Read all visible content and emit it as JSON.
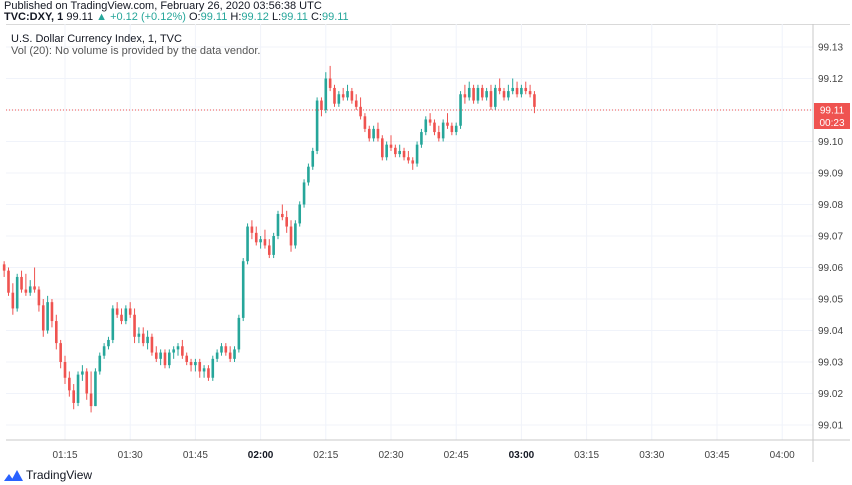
{
  "header": {
    "published": "Published on TradingView.com, February 26, 2020 03:56:38 UTC",
    "symbol": "TVC:DXY, 1",
    "last": "99.11",
    "change": "▲ +0.12 (+0.12%)",
    "o_label": "O:",
    "o_value": "99.11",
    "h_label": "H:",
    "h_value": "99.12",
    "l_label": "L:",
    "l_value": "99.11",
    "c_label": "C:",
    "c_value": "99.11"
  },
  "legend": {
    "title": "U.S. Dollar Currency Index, 1, TVC",
    "volume_note": "Vol (20): No volume is provided by the data vendor."
  },
  "footer": {
    "brand": "TradingView"
  },
  "colors": {
    "up": "#26a69a",
    "down": "#ef5350",
    "grid": "#f0f3fa",
    "current": "#ef5350"
  },
  "icons": {
    "brand_logo": "tradingview-logo-icon"
  },
  "chart_data": {
    "type": "candlestick",
    "title": "U.S. Dollar Currency Index, 1, TVC",
    "ylim": [
      99.0,
      99.135
    ],
    "y_ticks": [
      "99.13",
      "99.12",
      "99.11",
      "99.10",
      "99.09",
      "99.08",
      "99.07",
      "99.06",
      "99.05",
      "99.04",
      "99.03",
      "99.02",
      "99.01"
    ],
    "x_ticks": [
      {
        "t": 75,
        "label": "01:15",
        "bold": false
      },
      {
        "t": 90,
        "label": "01:30",
        "bold": false
      },
      {
        "t": 105,
        "label": "01:45",
        "bold": false
      },
      {
        "t": 120,
        "label": "02:00",
        "bold": true
      },
      {
        "t": 135,
        "label": "02:15",
        "bold": false
      },
      {
        "t": 150,
        "label": "02:30",
        "bold": false
      },
      {
        "t": 165,
        "label": "02:45",
        "bold": false
      },
      {
        "t": 180,
        "label": "03:00",
        "bold": true
      },
      {
        "t": 195,
        "label": "03:15",
        "bold": false
      },
      {
        "t": 210,
        "label": "03:30",
        "bold": false
      },
      {
        "t": 225,
        "label": "03:45",
        "bold": false
      },
      {
        "t": 240,
        "label": "04:00",
        "bold": false
      }
    ],
    "x_start_minute": 61,
    "current_price": "99.11",
    "countdown": "00:23",
    "candles": [
      [
        99.061,
        99.062,
        99.057,
        99.059
      ],
      [
        99.059,
        99.06,
        99.051,
        99.052
      ],
      [
        99.052,
        99.055,
        99.045,
        99.047
      ],
      [
        99.047,
        99.058,
        99.046,
        99.057
      ],
      [
        99.057,
        99.059,
        99.052,
        99.053
      ],
      [
        99.053,
        99.058,
        99.051,
        99.052
      ],
      [
        99.052,
        99.056,
        99.051,
        99.054
      ],
      [
        99.054,
        99.06,
        99.052,
        99.053
      ],
      [
        99.053,
        99.054,
        99.046,
        99.048
      ],
      [
        99.048,
        99.05,
        99.038,
        99.04
      ],
      [
        99.04,
        99.051,
        99.039,
        99.049
      ],
      [
        99.049,
        99.05,
        99.041,
        99.043
      ],
      [
        99.043,
        99.045,
        99.034,
        99.036
      ],
      [
        99.036,
        99.037,
        99.028,
        99.03
      ],
      [
        99.03,
        99.032,
        99.023,
        99.025
      ],
      [
        99.025,
        99.027,
        99.019,
        99.021
      ],
      [
        99.021,
        99.023,
        99.015,
        99.017
      ],
      [
        99.017,
        99.027,
        99.016,
        99.026
      ],
      [
        99.026,
        99.029,
        99.024,
        99.027
      ],
      [
        99.027,
        99.028,
        99.018,
        99.02
      ],
      [
        99.02,
        99.027,
        99.014,
        99.016
      ],
      [
        99.016,
        99.028,
        99.016,
        99.027
      ],
      [
        99.027,
        99.033,
        99.026,
        99.032
      ],
      [
        99.032,
        99.036,
        99.031,
        99.035
      ],
      [
        99.035,
        99.038,
        99.034,
        99.037
      ],
      [
        99.037,
        99.048,
        99.036,
        99.047
      ],
      [
        99.047,
        99.049,
        99.044,
        99.045
      ],
      [
        99.045,
        99.047,
        99.042,
        99.043
      ],
      [
        99.043,
        99.048,
        99.042,
        99.047
      ],
      [
        99.047,
        99.049,
        99.044,
        99.045
      ],
      [
        99.045,
        99.047,
        99.036,
        99.038
      ],
      [
        99.038,
        99.041,
        99.036,
        99.039
      ],
      [
        99.039,
        99.041,
        99.035,
        99.036
      ],
      [
        99.036,
        99.04,
        99.034,
        99.038
      ],
      [
        99.038,
        99.039,
        99.032,
        99.033
      ],
      [
        99.033,
        99.035,
        99.03,
        99.031
      ],
      [
        99.031,
        99.034,
        99.029,
        99.033
      ],
      [
        99.033,
        99.034,
        99.028,
        99.029
      ],
      [
        99.029,
        99.034,
        99.028,
        99.033
      ],
      [
        99.033,
        99.035,
        99.031,
        99.034
      ],
      [
        99.034,
        99.036,
        99.032,
        99.035
      ],
      [
        99.035,
        99.037,
        99.031,
        99.032
      ],
      [
        99.032,
        99.033,
        99.029,
        99.03
      ],
      [
        99.03,
        99.031,
        99.027,
        99.029
      ],
      [
        99.029,
        99.031,
        99.027,
        99.03
      ],
      [
        99.03,
        99.031,
        99.025,
        99.027
      ],
      [
        99.027,
        99.029,
        99.025,
        99.028
      ],
      [
        99.028,
        99.029,
        99.024,
        99.025
      ],
      [
        99.025,
        99.032,
        99.024,
        99.031
      ],
      [
        99.031,
        99.034,
        99.03,
        99.033
      ],
      [
        99.033,
        99.036,
        99.032,
        99.035
      ],
      [
        99.035,
        99.036,
        99.032,
        99.033
      ],
      [
        99.033,
        99.035,
        99.03,
        99.031
      ],
      [
        99.031,
        99.035,
        99.03,
        99.034
      ],
      [
        99.034,
        99.045,
        99.033,
        99.044
      ],
      [
        99.044,
        99.063,
        99.043,
        99.062
      ],
      [
        99.062,
        99.074,
        99.061,
        99.073
      ],
      [
        99.073,
        99.075,
        99.069,
        99.071
      ],
      [
        99.071,
        99.073,
        99.067,
        99.068
      ],
      [
        99.068,
        99.07,
        99.066,
        99.069
      ],
      [
        99.069,
        99.072,
        99.066,
        99.067
      ],
      [
        99.067,
        99.069,
        99.063,
        99.064
      ],
      [
        99.064,
        99.071,
        99.063,
        99.07
      ],
      [
        99.07,
        99.078,
        99.069,
        99.077
      ],
      [
        99.077,
        99.08,
        99.075,
        99.076
      ],
      [
        99.076,
        99.078,
        99.071,
        99.073
      ],
      [
        99.073,
        99.075,
        99.065,
        99.067
      ],
      [
        99.067,
        99.075,
        99.066,
        99.074
      ],
      [
        99.074,
        99.081,
        99.073,
        99.08
      ],
      [
        99.08,
        99.088,
        99.079,
        99.087
      ],
      [
        99.087,
        99.093,
        99.086,
        99.092
      ],
      [
        99.092,
        99.098,
        99.091,
        99.097
      ],
      [
        99.097,
        99.114,
        99.096,
        99.113
      ],
      [
        99.113,
        99.114,
        99.108,
        99.11
      ],
      [
        99.11,
        99.122,
        99.109,
        99.12
      ],
      [
        99.12,
        99.124,
        99.116,
        99.117
      ],
      [
        99.117,
        99.118,
        99.111,
        99.112
      ],
      [
        99.112,
        99.116,
        99.111,
        99.115
      ],
      [
        99.115,
        99.117,
        99.113,
        99.114
      ],
      [
        99.114,
        99.118,
        99.113,
        99.116
      ],
      [
        99.116,
        99.117,
        99.112,
        99.113
      ],
      [
        99.113,
        99.115,
        99.11,
        99.111
      ],
      [
        99.111,
        99.114,
        99.107,
        99.108
      ],
      [
        99.108,
        99.109,
        99.103,
        99.104
      ],
      [
        99.104,
        99.105,
        99.1,
        99.101
      ],
      [
        99.101,
        99.105,
        99.1,
        99.104
      ],
      [
        99.104,
        99.106,
        99.1,
        99.101
      ],
      [
        99.101,
        99.102,
        99.094,
        99.095
      ],
      [
        99.095,
        99.1,
        99.094,
        99.099
      ],
      [
        99.099,
        99.102,
        99.097,
        99.098
      ],
      [
        99.098,
        99.099,
        99.095,
        99.096
      ],
      [
        99.096,
        99.099,
        99.095,
        99.097
      ],
      [
        99.097,
        99.098,
        99.094,
        99.095
      ],
      [
        99.095,
        99.097,
        99.093,
        99.094
      ],
      [
        99.094,
        99.095,
        99.091,
        99.093
      ],
      [
        99.093,
        99.1,
        99.092,
        99.099
      ],
      [
        99.099,
        99.104,
        99.098,
        99.103
      ],
      [
        99.103,
        99.108,
        99.102,
        99.107
      ],
      [
        99.107,
        99.109,
        99.105,
        99.106
      ],
      [
        99.106,
        99.107,
        99.102,
        99.103
      ],
      [
        99.103,
        99.105,
        99.1,
        99.101
      ],
      [
        99.101,
        99.107,
        99.1,
        99.106
      ],
      [
        99.106,
        99.109,
        99.104,
        99.105
      ],
      [
        99.105,
        99.106,
        99.102,
        99.103
      ],
      [
        99.103,
        99.106,
        99.102,
        99.105
      ],
      [
        99.105,
        99.116,
        99.104,
        99.115
      ],
      [
        99.115,
        99.118,
        99.112,
        99.114
      ],
      [
        99.114,
        99.119,
        99.113,
        99.117
      ],
      [
        99.117,
        99.118,
        99.112,
        99.113
      ],
      [
        99.113,
        99.118,
        99.112,
        99.117
      ],
      [
        99.117,
        99.118,
        99.113,
        99.114
      ],
      [
        99.114,
        99.117,
        99.113,
        99.116
      ],
      [
        99.116,
        99.118,
        99.11,
        99.111
      ],
      [
        99.111,
        99.118,
        99.11,
        99.117
      ],
      [
        99.117,
        99.12,
        99.115,
        99.116
      ],
      [
        99.116,
        99.117,
        99.113,
        99.114
      ],
      [
        99.114,
        99.118,
        99.113,
        99.116
      ],
      [
        99.116,
        99.12,
        99.115,
        99.117
      ],
      [
        99.117,
        99.119,
        99.114,
        99.115
      ],
      [
        99.115,
        99.118,
        99.114,
        99.117
      ],
      [
        99.117,
        99.119,
        99.115,
        99.116
      ],
      [
        99.116,
        99.118,
        99.114,
        99.115
      ],
      [
        99.115,
        99.116,
        99.109,
        99.111
      ]
    ]
  }
}
